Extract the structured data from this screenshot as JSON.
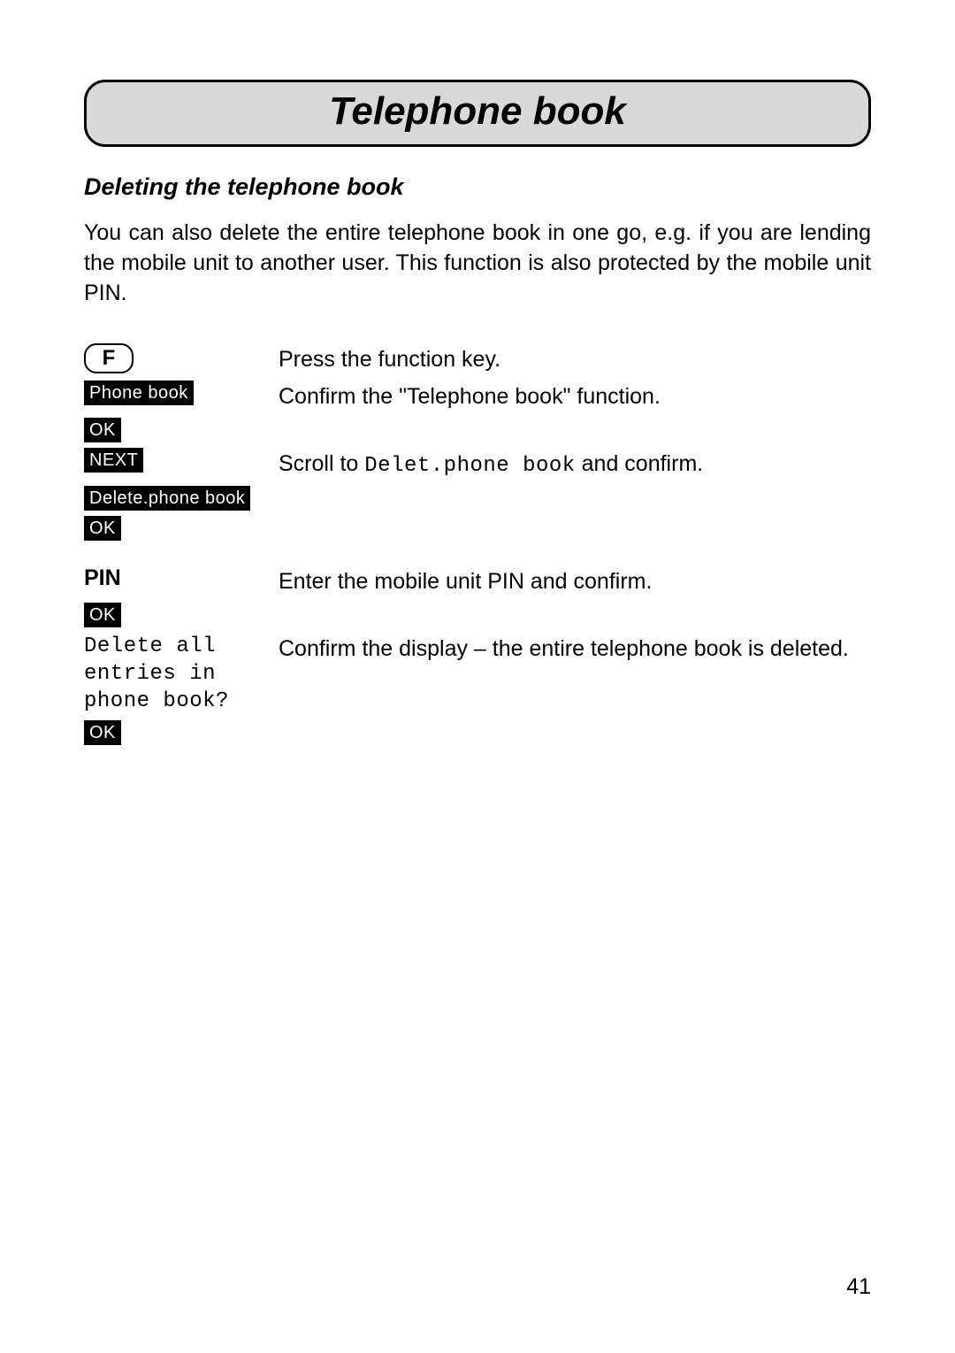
{
  "title": "Telephone book",
  "subheading": "Deleting the telephone book",
  "intro": "You can also delete the entire telephone book in one go, e.g. if you are lending the mobile unit to another user. This function is also protected by the mobile unit PIN.",
  "steps": {
    "fkey_label": "F",
    "fkey_desc": "Press the function key.",
    "phonebook_btn": "Phone book",
    "phonebook_desc": "Confirm the \"Telephone book\" function.",
    "ok": "OK",
    "next_btn": "NEXT",
    "next_desc_pre": "Scroll to ",
    "next_desc_mono": "Delet.phone book",
    "next_desc_post": " and confirm.",
    "delete_btn": "Delete.phone book",
    "pin_label": "PIN",
    "pin_desc": "Enter the mobile unit PIN and confirm.",
    "confirm_display": "Delete all\nentries in\nphone book?",
    "confirm_desc": "Confirm the display – the entire telephone book is deleted."
  },
  "page_number": "41",
  "colors": {
    "title_bg": "#d9d9d9",
    "text": "#000000",
    "page_bg": "#ffffff"
  }
}
